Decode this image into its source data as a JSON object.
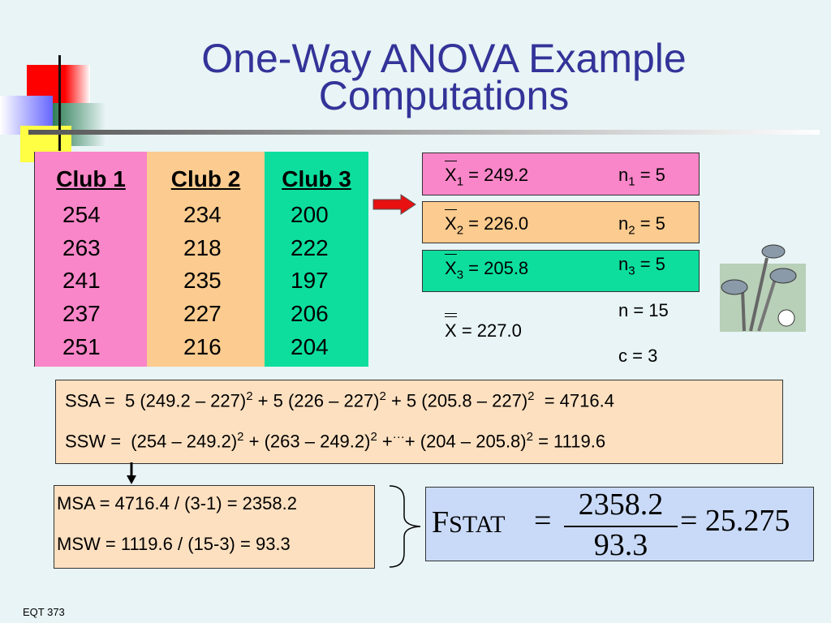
{
  "title": {
    "lines": [
      "One-Way ANOVA Example",
      "Computations"
    ]
  },
  "table": {
    "headers": [
      "Club 1",
      "Club 2",
      "Club 3"
    ],
    "rows": [
      [
        254,
        234,
        200
      ],
      [
        263,
        218,
        222
      ],
      [
        241,
        235,
        197
      ],
      [
        237,
        227,
        206
      ],
      [
        251,
        216,
        204
      ]
    ]
  },
  "group_stats": [
    {
      "symbol": "X",
      "sub": "1",
      "text": "= 249.2",
      "n_symbol": "n",
      "n_sub": "1",
      "n_text": "= 5"
    },
    {
      "symbol": "X",
      "sub": "2",
      "text": "= 226.0",
      "n_symbol": "n",
      "n_sub": "2",
      "n_text": "= 5"
    },
    {
      "symbol": "X",
      "sub": "3",
      "text": "= 205.8",
      "n_symbol": "n",
      "n_sub": "3",
      "n_text": "= 5"
    }
  ],
  "grand_mean": {
    "symbol": "X",
    "text": "= 227.0"
  },
  "n_total": "n = 15",
  "c": "c = 3",
  "ssa": [
    {
      "text": "SSA =  5 (249.2 – 227)"
    },
    {
      "sup": "2"
    },
    {
      "text": " + 5 (226 – 227)"
    },
    {
      "sup": "2"
    },
    {
      "text": " + 5 (205.8 – 227)"
    },
    {
      "sup": "2"
    },
    {
      "text": "  = 4716.4"
    }
  ],
  "ssw": [
    {
      "text": "SSW =  (254 – 249.2)"
    },
    {
      "sup": "2"
    },
    {
      "text": " + (263 – 249.2)"
    },
    {
      "sup": "2"
    },
    {
      "text": " +"
    },
    {
      "sup": "···"
    },
    {
      "text": "+ (204 – 205.8)"
    },
    {
      "sup": "2"
    },
    {
      "text": " = 1119.6"
    }
  ],
  "msa": "MSA = 4716.4 / (3-1) = 2358.2",
  "msw": "MSW = 1119.6 / (15-3) = 93.3",
  "fstat": {
    "symbol": "F",
    "sub": "STAT",
    "eq1": "=",
    "numerator": "2358.2",
    "denominator": "93.3",
    "result": "= 25.275"
  },
  "footer": "EQT 373"
}
